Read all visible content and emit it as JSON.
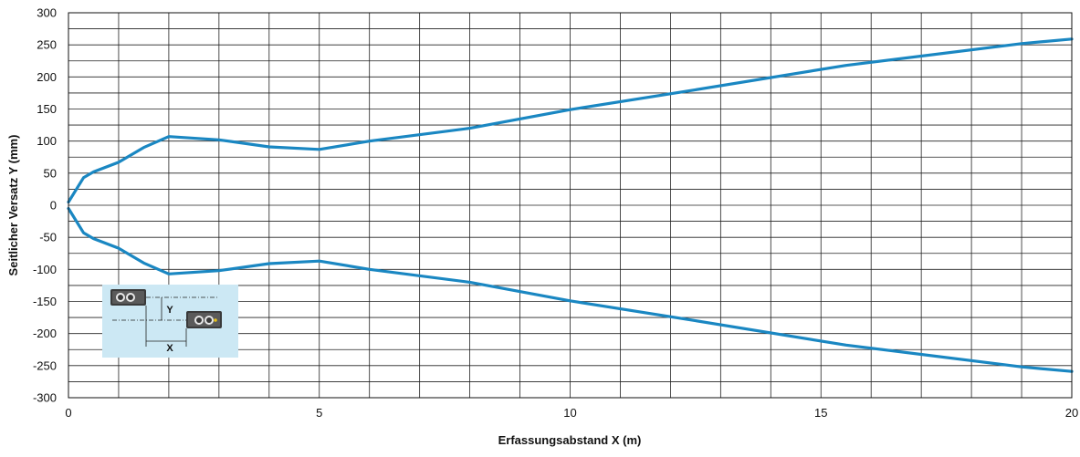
{
  "chart_data": {
    "type": "line",
    "title": "",
    "xlabel": "Erfassungsabstand X (m)",
    "ylabel": "Seitlicher Versatz Y (mm)",
    "xlim": [
      0,
      20
    ],
    "ylim": [
      -300,
      300
    ],
    "x_ticks": [
      0,
      5,
      10,
      15,
      20
    ],
    "x_tick_labels": [
      "0",
      "5",
      "10",
      "15",
      "20"
    ],
    "y_ticks": [
      300,
      250,
      200,
      150,
      100,
      50,
      0,
      -50,
      -100,
      -150,
      -200,
      -250,
      -300
    ],
    "y_tick_labels": [
      "300",
      "250",
      "200",
      "150",
      "100",
      "50",
      "0",
      "-50",
      "-100",
      "-150",
      "-200",
      "-250",
      "-300"
    ],
    "x_minor_step": 1,
    "y_minor_step": 25,
    "grid": true,
    "line_color": "#1a87c2",
    "series": [
      {
        "x": [
          0,
          0.3,
          0.5,
          1,
          1.5,
          2,
          3,
          4,
          5,
          6,
          8,
          10,
          12.5,
          15.5,
          19,
          20
        ],
        "values": [
          5,
          43,
          52,
          67,
          90,
          107,
          102,
          91,
          87,
          100,
          120,
          149,
          180,
          218,
          252,
          259
        ]
      },
      {
        "x": [
          0,
          0.3,
          0.5,
          1,
          1.5,
          2,
          3,
          4,
          5,
          6,
          8,
          10,
          12.5,
          15.5,
          19,
          20
        ],
        "values": [
          -5,
          -43,
          -52,
          -67,
          -90,
          -107,
          -102,
          -91,
          -87,
          -100,
          -120,
          -149,
          -180,
          -218,
          -252,
          -259
        ]
      }
    ],
    "inset": {
      "background": "#cce8f4",
      "labels": {
        "y": "Y",
        "x": "X"
      }
    }
  }
}
